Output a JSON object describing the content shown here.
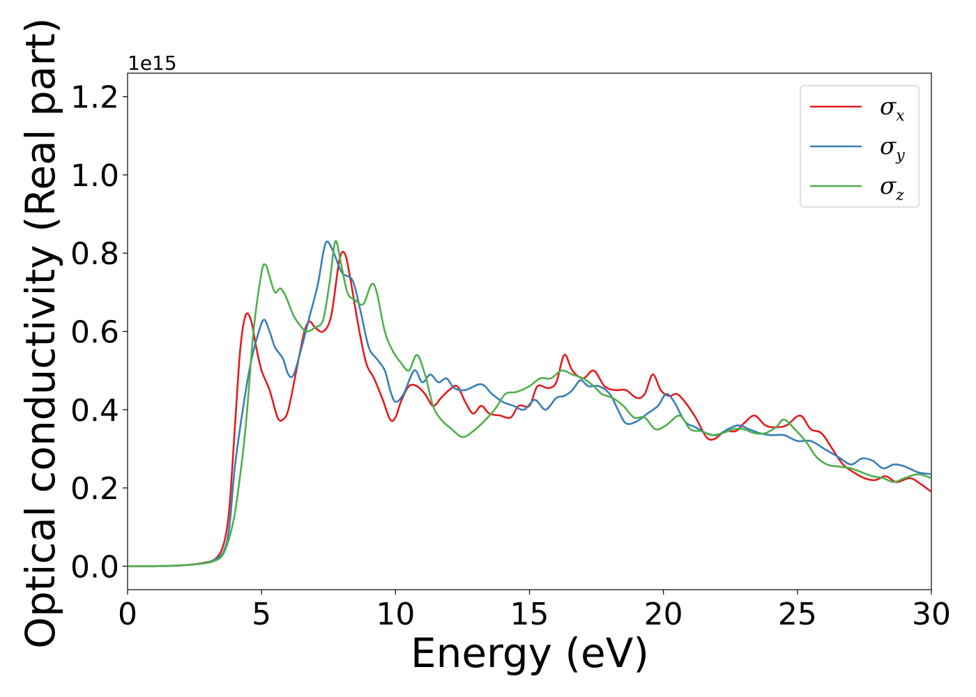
{
  "chart_data": {
    "type": "line",
    "xlabel": "Energy (eV)",
    "ylabel": "Optical conductivity (Real part)",
    "y_offset_label": "1e15",
    "xlim": [
      0,
      30
    ],
    "ylim": [
      -0.06,
      1.26
    ],
    "x_ticks": [
      0,
      5,
      10,
      15,
      20,
      25,
      30
    ],
    "y_ticks": [
      0.0,
      0.2,
      0.4,
      0.6,
      0.8,
      1.0,
      1.2
    ],
    "x_tick_labels": [
      "0",
      "5",
      "10",
      "15",
      "20",
      "25",
      "30"
    ],
    "y_tick_labels": [
      "0.0",
      "0.2",
      "0.4",
      "0.6",
      "0.8",
      "1.0",
      "1.2"
    ],
    "grid": false,
    "legend_position": "top-right",
    "series": [
      {
        "name": "σx",
        "symbol": "σ",
        "sub": "x",
        "color": "#e41a1c",
        "points": [
          [
            0,
            0
          ],
          [
            1,
            0
          ],
          [
            2,
            0.002
          ],
          [
            2.8,
            0.008
          ],
          [
            3.3,
            0.02
          ],
          [
            3.6,
            0.06
          ],
          [
            3.8,
            0.15
          ],
          [
            4.0,
            0.35
          ],
          [
            4.2,
            0.55
          ],
          [
            4.4,
            0.64
          ],
          [
            4.6,
            0.63
          ],
          [
            4.8,
            0.56
          ],
          [
            5.0,
            0.5
          ],
          [
            5.3,
            0.45
          ],
          [
            5.6,
            0.38
          ],
          [
            5.8,
            0.375
          ],
          [
            6.0,
            0.4
          ],
          [
            6.3,
            0.5
          ],
          [
            6.6,
            0.6
          ],
          [
            6.8,
            0.625
          ],
          [
            7.0,
            0.61
          ],
          [
            7.3,
            0.6
          ],
          [
            7.6,
            0.64
          ],
          [
            7.9,
            0.78
          ],
          [
            8.1,
            0.8
          ],
          [
            8.3,
            0.74
          ],
          [
            8.6,
            0.62
          ],
          [
            8.9,
            0.52
          ],
          [
            9.2,
            0.48
          ],
          [
            9.5,
            0.43
          ],
          [
            9.8,
            0.375
          ],
          [
            10.0,
            0.38
          ],
          [
            10.2,
            0.42
          ],
          [
            10.5,
            0.46
          ],
          [
            10.8,
            0.46
          ],
          [
            11.1,
            0.44
          ],
          [
            11.4,
            0.41
          ],
          [
            11.7,
            0.43
          ],
          [
            12.0,
            0.45
          ],
          [
            12.3,
            0.46
          ],
          [
            12.6,
            0.42
          ],
          [
            12.9,
            0.39
          ],
          [
            13.2,
            0.41
          ],
          [
            13.5,
            0.39
          ],
          [
            13.9,
            0.385
          ],
          [
            14.3,
            0.38
          ],
          [
            14.6,
            0.41
          ],
          [
            15.0,
            0.41
          ],
          [
            15.3,
            0.46
          ],
          [
            15.7,
            0.455
          ],
          [
            16.0,
            0.47
          ],
          [
            16.3,
            0.54
          ],
          [
            16.6,
            0.5
          ],
          [
            17.0,
            0.48
          ],
          [
            17.4,
            0.5
          ],
          [
            17.8,
            0.46
          ],
          [
            18.2,
            0.45
          ],
          [
            18.6,
            0.45
          ],
          [
            19.0,
            0.43
          ],
          [
            19.3,
            0.44
          ],
          [
            19.6,
            0.49
          ],
          [
            19.9,
            0.45
          ],
          [
            20.2,
            0.435
          ],
          [
            20.5,
            0.44
          ],
          [
            20.8,
            0.42
          ],
          [
            21.2,
            0.38
          ],
          [
            21.6,
            0.33
          ],
          [
            21.9,
            0.325
          ],
          [
            22.3,
            0.345
          ],
          [
            22.7,
            0.345
          ],
          [
            23.0,
            0.365
          ],
          [
            23.4,
            0.385
          ],
          [
            23.8,
            0.36
          ],
          [
            24.2,
            0.355
          ],
          [
            24.6,
            0.36
          ],
          [
            25.1,
            0.385
          ],
          [
            25.5,
            0.35
          ],
          [
            25.9,
            0.34
          ],
          [
            26.3,
            0.3
          ],
          [
            26.7,
            0.26
          ],
          [
            27.1,
            0.24
          ],
          [
            27.5,
            0.225
          ],
          [
            27.9,
            0.22
          ],
          [
            28.3,
            0.23
          ],
          [
            28.7,
            0.215
          ],
          [
            29.2,
            0.225
          ],
          [
            29.6,
            0.21
          ],
          [
            30.0,
            0.19
          ]
        ]
      },
      {
        "name": "σy",
        "symbol": "σ",
        "sub": "y",
        "color": "#377eb8",
        "points": [
          [
            0,
            0
          ],
          [
            1,
            0
          ],
          [
            2,
            0.002
          ],
          [
            2.8,
            0.007
          ],
          [
            3.3,
            0.018
          ],
          [
            3.6,
            0.04
          ],
          [
            3.8,
            0.1
          ],
          [
            4.0,
            0.25
          ],
          [
            4.3,
            0.4
          ],
          [
            4.6,
            0.52
          ],
          [
            4.9,
            0.6
          ],
          [
            5.1,
            0.63
          ],
          [
            5.3,
            0.6
          ],
          [
            5.5,
            0.56
          ],
          [
            5.8,
            0.53
          ],
          [
            6.0,
            0.49
          ],
          [
            6.2,
            0.49
          ],
          [
            6.5,
            0.56
          ],
          [
            6.8,
            0.64
          ],
          [
            7.1,
            0.72
          ],
          [
            7.3,
            0.8
          ],
          [
            7.45,
            0.83
          ],
          [
            7.7,
            0.8
          ],
          [
            8.0,
            0.75
          ],
          [
            8.4,
            0.73
          ],
          [
            8.7,
            0.65
          ],
          [
            9.0,
            0.56
          ],
          [
            9.3,
            0.53
          ],
          [
            9.6,
            0.5
          ],
          [
            9.8,
            0.45
          ],
          [
            10.0,
            0.42
          ],
          [
            10.3,
            0.44
          ],
          [
            10.7,
            0.5
          ],
          [
            11.0,
            0.47
          ],
          [
            11.3,
            0.49
          ],
          [
            11.6,
            0.47
          ],
          [
            11.9,
            0.48
          ],
          [
            12.2,
            0.455
          ],
          [
            12.6,
            0.45
          ],
          [
            13.2,
            0.465
          ],
          [
            13.6,
            0.44
          ],
          [
            14.0,
            0.42
          ],
          [
            14.4,
            0.41
          ],
          [
            14.8,
            0.4
          ],
          [
            15.2,
            0.425
          ],
          [
            15.6,
            0.4
          ],
          [
            16.0,
            0.43
          ],
          [
            16.3,
            0.435
          ],
          [
            16.6,
            0.45
          ],
          [
            16.9,
            0.475
          ],
          [
            17.2,
            0.46
          ],
          [
            17.6,
            0.46
          ],
          [
            18.0,
            0.44
          ],
          [
            18.3,
            0.4
          ],
          [
            18.6,
            0.365
          ],
          [
            19.0,
            0.37
          ],
          [
            19.4,
            0.39
          ],
          [
            19.8,
            0.41
          ],
          [
            20.1,
            0.44
          ],
          [
            20.4,
            0.42
          ],
          [
            20.8,
            0.37
          ],
          [
            21.2,
            0.355
          ],
          [
            21.6,
            0.34
          ],
          [
            22.0,
            0.335
          ],
          [
            22.4,
            0.35
          ],
          [
            22.8,
            0.36
          ],
          [
            23.2,
            0.35
          ],
          [
            23.6,
            0.34
          ],
          [
            24.0,
            0.335
          ],
          [
            24.5,
            0.335
          ],
          [
            25.0,
            0.32
          ],
          [
            25.5,
            0.32
          ],
          [
            26.0,
            0.3
          ],
          [
            26.5,
            0.28
          ],
          [
            27.0,
            0.26
          ],
          [
            27.4,
            0.275
          ],
          [
            27.8,
            0.27
          ],
          [
            28.2,
            0.25
          ],
          [
            28.6,
            0.26
          ],
          [
            29.0,
            0.255
          ],
          [
            29.5,
            0.24
          ],
          [
            30.0,
            0.235
          ]
        ]
      },
      {
        "name": "σz",
        "symbol": "σ",
        "sub": "z",
        "color": "#4daf4a",
        "points": [
          [
            0,
            0
          ],
          [
            1,
            0
          ],
          [
            2,
            0.002
          ],
          [
            2.8,
            0.007
          ],
          [
            3.3,
            0.015
          ],
          [
            3.6,
            0.035
          ],
          [
            3.9,
            0.1
          ],
          [
            4.1,
            0.18
          ],
          [
            4.4,
            0.35
          ],
          [
            4.7,
            0.6
          ],
          [
            5.0,
            0.75
          ],
          [
            5.15,
            0.77
          ],
          [
            5.3,
            0.74
          ],
          [
            5.5,
            0.7
          ],
          [
            5.7,
            0.71
          ],
          [
            5.9,
            0.69
          ],
          [
            6.2,
            0.64
          ],
          [
            6.5,
            0.61
          ],
          [
            6.7,
            0.6
          ],
          [
            7.0,
            0.61
          ],
          [
            7.3,
            0.63
          ],
          [
            7.55,
            0.73
          ],
          [
            7.75,
            0.83
          ],
          [
            7.95,
            0.78
          ],
          [
            8.2,
            0.7
          ],
          [
            8.5,
            0.68
          ],
          [
            8.8,
            0.67
          ],
          [
            9.1,
            0.72
          ],
          [
            9.3,
            0.7
          ],
          [
            9.6,
            0.6
          ],
          [
            9.9,
            0.55
          ],
          [
            10.2,
            0.52
          ],
          [
            10.5,
            0.5
          ],
          [
            10.8,
            0.54
          ],
          [
            11.1,
            0.49
          ],
          [
            11.4,
            0.41
          ],
          [
            11.7,
            0.375
          ],
          [
            12.1,
            0.35
          ],
          [
            12.5,
            0.33
          ],
          [
            12.9,
            0.345
          ],
          [
            13.3,
            0.37
          ],
          [
            13.7,
            0.4
          ],
          [
            14.1,
            0.44
          ],
          [
            14.5,
            0.445
          ],
          [
            15.0,
            0.46
          ],
          [
            15.4,
            0.48
          ],
          [
            15.8,
            0.48
          ],
          [
            16.2,
            0.5
          ],
          [
            16.6,
            0.49
          ],
          [
            17.0,
            0.48
          ],
          [
            17.4,
            0.46
          ],
          [
            17.7,
            0.44
          ],
          [
            18.1,
            0.43
          ],
          [
            18.5,
            0.41
          ],
          [
            18.9,
            0.38
          ],
          [
            19.3,
            0.38
          ],
          [
            19.7,
            0.35
          ],
          [
            20.1,
            0.36
          ],
          [
            20.6,
            0.385
          ],
          [
            21.0,
            0.35
          ],
          [
            21.4,
            0.345
          ],
          [
            21.8,
            0.335
          ],
          [
            22.2,
            0.34
          ],
          [
            22.6,
            0.35
          ],
          [
            23.0,
            0.35
          ],
          [
            23.4,
            0.34
          ],
          [
            23.8,
            0.34
          ],
          [
            24.2,
            0.355
          ],
          [
            24.5,
            0.375
          ],
          [
            24.9,
            0.35
          ],
          [
            25.3,
            0.32
          ],
          [
            25.7,
            0.28
          ],
          [
            26.1,
            0.26
          ],
          [
            26.5,
            0.255
          ],
          [
            27.0,
            0.25
          ],
          [
            27.4,
            0.24
          ],
          [
            27.8,
            0.23
          ],
          [
            28.2,
            0.225
          ],
          [
            28.6,
            0.215
          ],
          [
            29.0,
            0.225
          ],
          [
            29.5,
            0.235
          ],
          [
            30.0,
            0.225
          ]
        ]
      }
    ]
  }
}
